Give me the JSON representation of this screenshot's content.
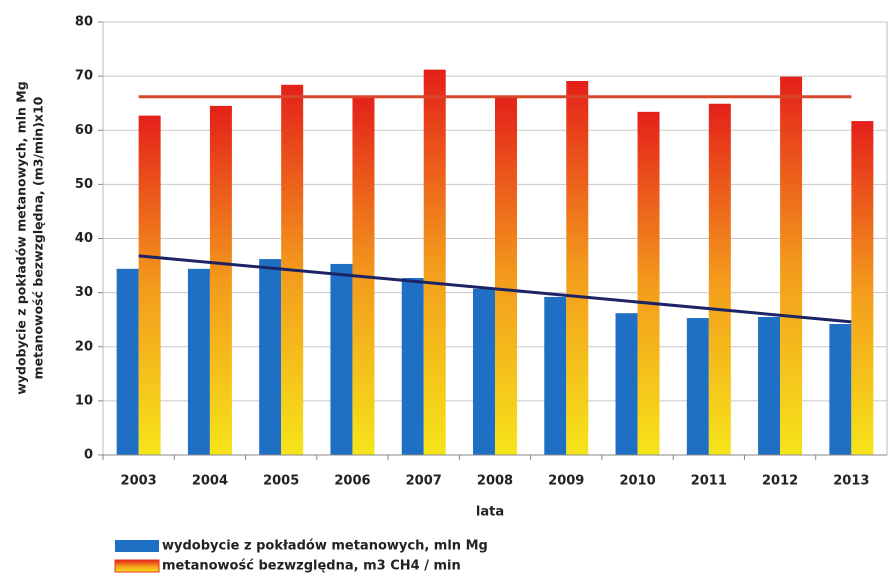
{
  "chart_data": {
    "type": "bar",
    "y_label": [
      "wydobycie z pokładów metanowych, mln Mg",
      "metanowość bezwzględna, (m3/min)x10"
    ],
    "x_label": "lata",
    "categories": [
      "2003",
      "2004",
      "2005",
      "2006",
      "2007",
      "2008",
      "2009",
      "2010",
      "2011",
      "2012",
      "2013"
    ],
    "series": [
      {
        "name": "wydobycie z pokładów metanowych, mln Mg",
        "color": "#1f6fc5",
        "values": [
          34.4,
          34.4,
          36.2,
          35.3,
          32.7,
          30.7,
          29.2,
          26.2,
          25.3,
          25.5,
          24.2
        ]
      },
      {
        "name": "metanowość bezwzględna, m3 CH4 / min",
        "color": "#e8321a",
        "gradient": [
          "#e4201a",
          "#f39a1c",
          "#f6e41a"
        ],
        "values": [
          62.7,
          64.5,
          68.4,
          66.2,
          71.2,
          66.4,
          69.1,
          63.4,
          64.9,
          69.9,
          61.7
        ]
      }
    ],
    "trend_lines": [
      {
        "color": "#d9472b",
        "values": [
          66.2,
          66.2
        ]
      },
      {
        "color": "#1c2466",
        "values": [
          36.8,
          24.6
        ]
      }
    ],
    "ylim": [
      0,
      80
    ],
    "yticks": [
      0,
      10,
      20,
      30,
      40,
      50,
      60,
      70,
      80
    ],
    "grid": true,
    "legend": "bottom-left"
  }
}
